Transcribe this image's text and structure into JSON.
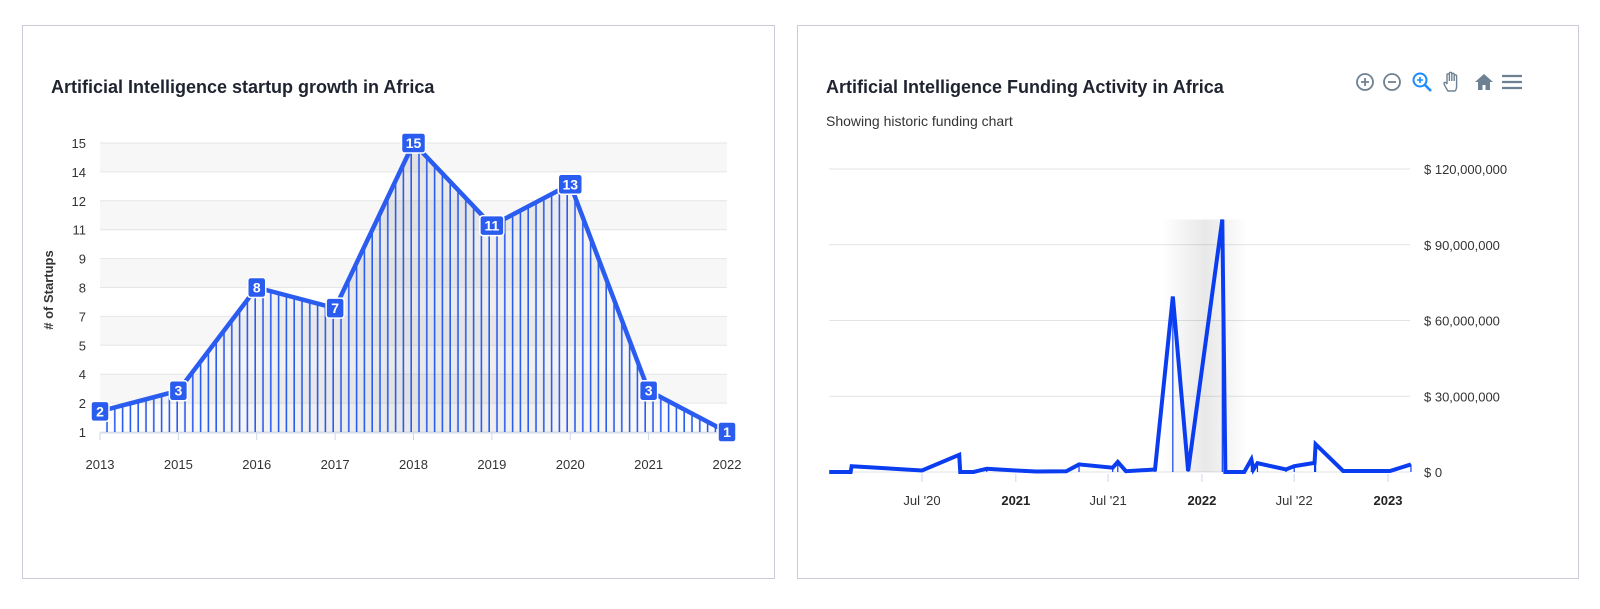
{
  "chart_data": [
    {
      "type": "area",
      "title": "Artificial Intelligence startup growth in Africa",
      "xlabel": "",
      "ylabel": "# of Startups",
      "categories": [
        "2013",
        "2015",
        "2016",
        "2017",
        "2018",
        "2019",
        "2020",
        "2021",
        "2022"
      ],
      "values": [
        2,
        3,
        8,
        7,
        15,
        11,
        13,
        3,
        1
      ],
      "data_labels": [
        "2",
        "3",
        "8",
        "7",
        "15",
        "11",
        "13",
        "3",
        "1"
      ],
      "ylim": [
        1,
        15
      ],
      "yticks": [
        "1",
        "2",
        "4",
        "5",
        "7",
        "8",
        "9",
        "11",
        "12",
        "14",
        "15"
      ],
      "grid": true,
      "color": "#2b5cf0"
    },
    {
      "type": "line",
      "title": "Artificial Intelligence Funding Activity in Africa",
      "subtitle": "Showing historic funding chart",
      "xlabel": "",
      "ylabel": "",
      "xlim": [
        "2020-01-01",
        "2023-02-15"
      ],
      "ylim": [
        0,
        120000000
      ],
      "yticks": [
        "$ 0",
        "$ 30,000,000",
        "$ 60,000,000",
        "$ 90,000,000",
        "$ 120,000,000"
      ],
      "xticks": [
        {
          "label": "Jul '20",
          "date": "2020-07-01",
          "bold": false
        },
        {
          "label": "2021",
          "date": "2021-01-01",
          "bold": true
        },
        {
          "label": "Jul '21",
          "date": "2021-07-01",
          "bold": false
        },
        {
          "label": "2022",
          "date": "2022-01-01",
          "bold": true
        },
        {
          "label": "Jul '22",
          "date": "2022-07-01",
          "bold": false
        },
        {
          "label": "2023",
          "date": "2023-01-01",
          "bold": true
        }
      ],
      "grid": true,
      "color": "#0b3df0",
      "points": [
        [
          "2020-01-01",
          0
        ],
        [
          "2020-02-12",
          0
        ],
        [
          "2020-02-14",
          2300000
        ],
        [
          "2020-07-01",
          600000
        ],
        [
          "2020-09-12",
          6800000
        ],
        [
          "2020-09-14",
          0
        ],
        [
          "2020-10-10",
          0
        ],
        [
          "2020-11-05",
          1300000
        ],
        [
          "2021-01-01",
          600000
        ],
        [
          "2021-02-10",
          200000
        ],
        [
          "2021-04-10",
          300000
        ],
        [
          "2021-05-05",
          3000000
        ],
        [
          "2021-07-10",
          1700000
        ],
        [
          "2021-07-20",
          4000000
        ],
        [
          "2021-08-05",
          300000
        ],
        [
          "2021-10-01",
          1000000
        ],
        [
          "2021-11-05",
          69500000
        ],
        [
          "2021-12-05",
          400000
        ],
        [
          "2022-02-10",
          100000000
        ],
        [
          "2022-02-16",
          0
        ],
        [
          "2022-03-25",
          0
        ],
        [
          "2022-04-08",
          5000000
        ],
        [
          "2022-04-12",
          1000000
        ],
        [
          "2022-04-20",
          3500000
        ],
        [
          "2022-06-15",
          1000000
        ],
        [
          "2022-07-01",
          2300000
        ],
        [
          "2022-08-10",
          3600000
        ],
        [
          "2022-08-12",
          11000000
        ],
        [
          "2022-10-05",
          400000
        ],
        [
          "2023-01-05",
          400000
        ],
        [
          "2023-02-15",
          3000000
        ]
      ]
    }
  ],
  "toolbar": {
    "icons": [
      "zoom-in-icon",
      "zoom-out-icon",
      "selection-zoom-icon",
      "pan-hand-icon",
      "home-reset-icon",
      "menu-icon"
    ],
    "active_color": "#1a8cff",
    "icon_color": "#6e8192"
  }
}
